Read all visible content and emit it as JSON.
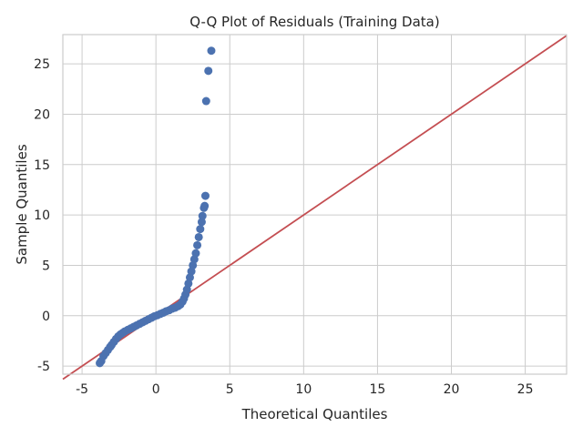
{
  "chart_data": {
    "type": "scatter",
    "title": "Q-Q Plot of Residuals (Training Data)",
    "xlabel": "Theoretical Quantiles",
    "ylabel": "Sample Quantiles",
    "xlim": [
      -6.3,
      27.8
    ],
    "ylim": [
      -5.8,
      27.9
    ],
    "x_ticks": [
      -5,
      0,
      5,
      10,
      15,
      20,
      25
    ],
    "y_ticks": [
      -5,
      0,
      5,
      10,
      15,
      20,
      25
    ],
    "grid": true,
    "legend": "none",
    "colors": {
      "points": "#4c72b0",
      "reference_line": "#c44e52",
      "grid": "#cccccc"
    },
    "series": [
      {
        "type": "scatter",
        "points": [
          [
            -3.8,
            -4.7
          ],
          [
            -3.7,
            -4.5
          ],
          [
            -3.55,
            -4.0
          ],
          [
            -3.4,
            -3.7
          ],
          [
            -3.25,
            -3.4
          ],
          [
            -3.1,
            -3.1
          ],
          [
            -3.0,
            -2.9
          ],
          [
            -2.85,
            -2.6
          ],
          [
            -2.7,
            -2.3
          ],
          [
            -2.55,
            -2.05
          ],
          [
            -2.4,
            -1.85
          ],
          [
            -2.25,
            -1.7
          ],
          [
            -2.1,
            -1.55
          ],
          [
            -1.9,
            -1.4
          ],
          [
            -1.7,
            -1.25
          ],
          [
            -1.5,
            -1.1
          ],
          [
            -1.3,
            -0.95
          ],
          [
            -1.1,
            -0.8
          ],
          [
            -0.9,
            -0.65
          ],
          [
            -0.7,
            -0.5
          ],
          [
            -0.5,
            -0.35
          ],
          [
            -0.3,
            -0.2
          ],
          [
            -0.1,
            -0.05
          ],
          [
            0.1,
            0.05
          ],
          [
            0.3,
            0.18
          ],
          [
            0.5,
            0.3
          ],
          [
            0.7,
            0.45
          ],
          [
            0.9,
            0.55
          ],
          [
            1.1,
            0.7
          ],
          [
            1.3,
            0.8
          ],
          [
            1.5,
            0.95
          ],
          [
            1.65,
            1.1
          ],
          [
            1.8,
            1.4
          ],
          [
            1.9,
            1.7
          ],
          [
            2.0,
            2.1
          ],
          [
            2.1,
            2.6
          ],
          [
            2.2,
            3.2
          ],
          [
            2.3,
            3.8
          ],
          [
            2.4,
            4.4
          ],
          [
            2.5,
            5.0
          ],
          [
            2.6,
            5.6
          ],
          [
            2.7,
            6.2
          ],
          [
            2.8,
            7.0
          ],
          [
            2.9,
            7.8
          ],
          [
            3.0,
            8.6
          ],
          [
            3.1,
            9.3
          ],
          [
            3.15,
            9.9
          ],
          [
            3.25,
            10.7
          ],
          [
            3.3,
            10.9
          ],
          [
            3.35,
            11.9
          ],
          [
            3.4,
            21.3
          ],
          [
            3.55,
            24.3
          ],
          [
            3.75,
            26.3
          ]
        ]
      },
      {
        "type": "line",
        "name": "",
        "x": [
          -6.3,
          27.8
        ],
        "y": [
          -6.3,
          27.8
        ]
      }
    ]
  }
}
